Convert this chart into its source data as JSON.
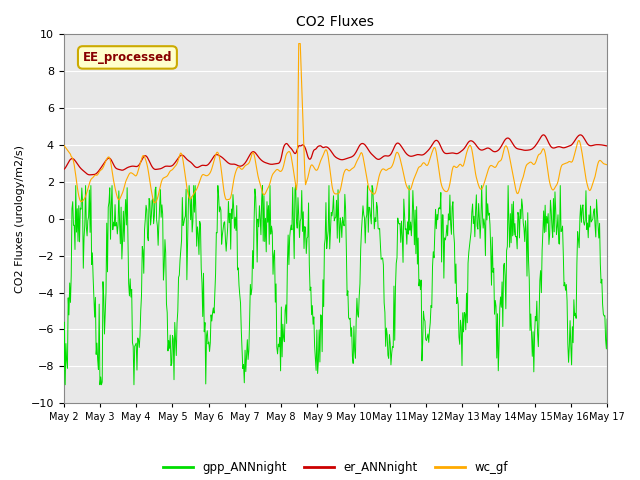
{
  "title": "CO2 Fluxes",
  "ylabel": "CO2 Fluxes (urology/m2/s)",
  "ylim": [
    -10,
    10
  ],
  "yticks": [
    -10,
    -8,
    -6,
    -4,
    -2,
    0,
    2,
    4,
    6,
    8,
    10
  ],
  "xlabel_dates": [
    "May 2",
    "May 3",
    "May 4",
    "May 5",
    "May 6",
    "May 7",
    "May 8",
    "May 9",
    "May 10",
    "May 11",
    "May 12",
    "May 13",
    "May 14",
    "May 15",
    "May 16",
    "May 17"
  ],
  "colors": {
    "gpp": "#00dd00",
    "er": "#cc0000",
    "wc": "#ffaa00",
    "background": "#e8e8e8",
    "legend_bg": "#ffffcc",
    "legend_border": "#ccaa00"
  },
  "legend_labels": [
    "gpp_ANNnight",
    "er_ANNnight",
    "wc_gf"
  ],
  "inset_label": "EE_processed",
  "inset_label_color": "#880000",
  "n_points": 720,
  "seed": 12345
}
